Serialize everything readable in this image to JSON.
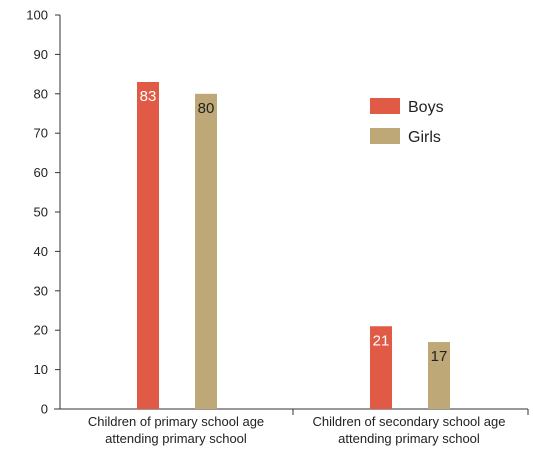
{
  "chart_data": {
    "type": "bar",
    "title": "",
    "xlabel": "",
    "ylabel": "",
    "ylim": [
      0,
      100
    ],
    "yticks": [
      0,
      10,
      20,
      30,
      40,
      50,
      60,
      70,
      80,
      90,
      100
    ],
    "categories": [
      [
        "Children of primary school age",
        "attending primary school"
      ],
      [
        "Children of secondary school age",
        "attending primary school"
      ]
    ],
    "series": [
      {
        "name": "Boys",
        "color": "#e05a45",
        "label_color": "#ffffff",
        "values": [
          83,
          21
        ]
      },
      {
        "name": "Girls",
        "color": "#bea878",
        "label_color": "#222222",
        "values": [
          80,
          17
        ]
      }
    ],
    "grid": false,
    "legend": "top-right"
  }
}
